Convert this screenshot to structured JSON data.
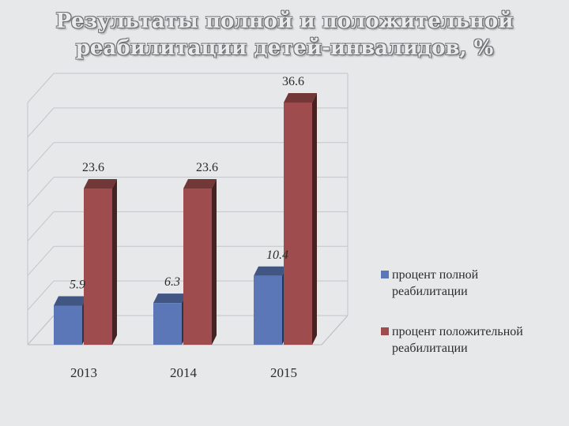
{
  "chart_data": {
    "type": "bar",
    "title": "Результаты полной и положительной реабилитации детей-инвалидов, %",
    "categories": [
      "2013",
      "2014",
      "2015"
    ],
    "series": [
      {
        "name": "процент полной реабилитации",
        "values": [
          5.9,
          6.3,
          10.4
        ],
        "labels": [
          "5.9",
          "6.3",
          "10.4"
        ],
        "color": "#5b77b7"
      },
      {
        "name": "процент положительной реабилитации",
        "values": [
          23.6,
          23.6,
          36.6
        ],
        "labels": [
          "23.6",
          "23.6",
          "36.6"
        ],
        "color": "#9e4c4d"
      }
    ],
    "ylim": [
      0,
      36.6
    ],
    "grid": true,
    "three_d": true,
    "legend_position": "right"
  }
}
